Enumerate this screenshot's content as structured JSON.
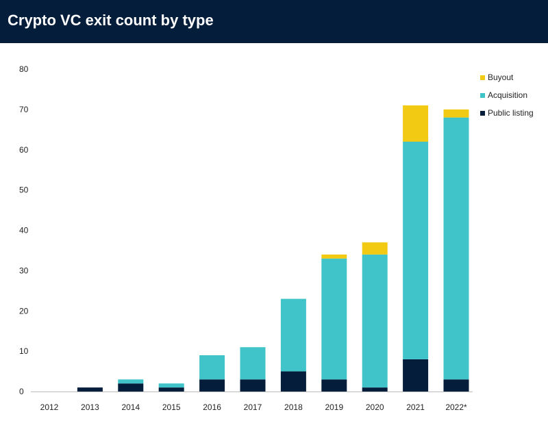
{
  "header": {
    "title": "Crypto VC exit count by type"
  },
  "colors": {
    "header_bg": "#031d3a",
    "Buyout": "#f2c913",
    "Acquisition": "#40c4c9",
    "Public listing": "#031d3a"
  },
  "chart_data": {
    "type": "bar",
    "stacked": true,
    "title": "Crypto VC exit count by type",
    "categories": [
      "2012",
      "2013",
      "2014",
      "2015",
      "2016",
      "2017",
      "2018",
      "2019",
      "2020",
      "2021",
      "2022*"
    ],
    "series": [
      {
        "name": "Public listing",
        "values": [
          0,
          1,
          2,
          1,
          3,
          3,
          5,
          3,
          1,
          8,
          3
        ]
      },
      {
        "name": "Acquisition",
        "values": [
          0,
          0,
          1,
          1,
          6,
          8,
          18,
          30,
          33,
          54,
          65
        ]
      },
      {
        "name": "Buyout",
        "values": [
          0,
          0,
          0,
          0,
          0,
          0,
          0,
          1,
          3,
          9,
          2
        ]
      }
    ],
    "yticks": [
      0,
      10,
      20,
      30,
      40,
      50,
      60,
      70,
      80
    ],
    "ylim": [
      0,
      80
    ],
    "grid": false,
    "legend": {
      "placement": "top-right",
      "entries": [
        "Buyout",
        "Acquisition",
        "Public listing"
      ]
    }
  }
}
